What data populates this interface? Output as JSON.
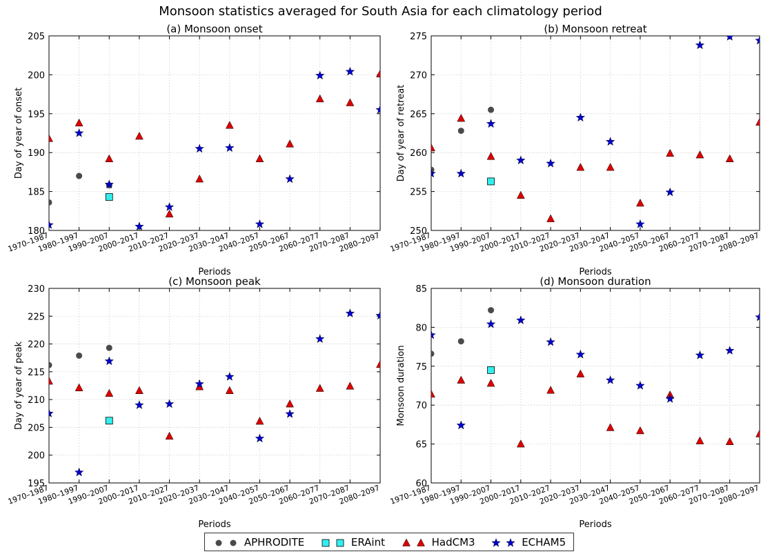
{
  "figure_title": "Monsoon statistics averaged for South Asia for each climatology period",
  "colors": {
    "APHRODITE": "#4a4a4a",
    "ERAint": "#33eeee",
    "HadCM3": "#dd0000",
    "ECHAM5": "#0000cc"
  },
  "legend": [
    {
      "name": "APHRODITE",
      "marker": "circle"
    },
    {
      "name": "ERAint",
      "marker": "square"
    },
    {
      "name": "HadCM3",
      "marker": "triangle"
    },
    {
      "name": "ECHAM5",
      "marker": "star"
    }
  ],
  "chart_data": [
    {
      "type": "scatter",
      "title": "(a) Monsoon onset",
      "xlabel": "Periods",
      "ylabel": "Day of year of onset",
      "ylim": [
        180,
        205
      ],
      "yticks": [
        180,
        185,
        190,
        195,
        200,
        205
      ],
      "grid": true,
      "categories": [
        "1970-1987",
        "1980-1997",
        "1990-2007",
        "2000-2017",
        "2010-2027",
        "2020-2037",
        "2030-2047",
        "2040-2057",
        "2050-2067",
        "2060-2077",
        "2070-2087",
        "2080-2097"
      ],
      "series": [
        {
          "name": "APHRODITE",
          "values": [
            183.6,
            187.0,
            185.8,
            null,
            null,
            null,
            null,
            null,
            null,
            null,
            null,
            null
          ]
        },
        {
          "name": "ERAint",
          "values": [
            null,
            null,
            184.3,
            null,
            null,
            null,
            null,
            null,
            null,
            null,
            null,
            null
          ]
        },
        {
          "name": "HadCM3",
          "values": [
            191.8,
            193.8,
            189.2,
            192.1,
            182.1,
            186.6,
            193.5,
            189.2,
            191.1,
            196.9,
            196.4,
            200.1
          ]
        },
        {
          "name": "ECHAM5",
          "values": [
            180.7,
            192.5,
            185.9,
            180.5,
            183.0,
            190.5,
            190.6,
            180.8,
            186.6,
            199.9,
            200.4,
            195.5
          ]
        }
      ]
    },
    {
      "type": "scatter",
      "title": "(b) Monsoon retreat",
      "xlabel": "Periods",
      "ylabel": "Day of year of retreat",
      "ylim": [
        250,
        275
      ],
      "yticks": [
        250,
        255,
        260,
        265,
        270,
        275
      ],
      "grid": true,
      "categories": [
        "1970-1987",
        "1980-1997",
        "1990-2007",
        "2000-2017",
        "2010-2027",
        "2020-2037",
        "2030-2047",
        "2040-2057",
        "2050-2067",
        "2060-2077",
        "2070-2087",
        "2080-2097"
      ],
      "series": [
        {
          "name": "APHRODITE",
          "values": [
            257.8,
            262.8,
            265.5,
            null,
            null,
            null,
            null,
            null,
            null,
            null,
            null,
            null
          ]
        },
        {
          "name": "ERAint",
          "values": [
            null,
            null,
            256.3,
            null,
            null,
            null,
            null,
            null,
            null,
            null,
            null,
            null
          ]
        },
        {
          "name": "HadCM3",
          "values": [
            260.6,
            264.4,
            259.5,
            254.5,
            251.5,
            258.1,
            258.1,
            253.5,
            259.9,
            259.7,
            259.2,
            263.9
          ]
        },
        {
          "name": "ECHAM5",
          "values": [
            257.3,
            257.3,
            263.7,
            259.0,
            258.6,
            264.5,
            261.4,
            250.8,
            254.9,
            273.8,
            274.9,
            274.4
          ]
        }
      ]
    },
    {
      "type": "scatter",
      "title": "(c) Monsoon peak",
      "xlabel": "Periods",
      "ylabel": "Day of year of peak",
      "ylim": [
        195,
        230
      ],
      "yticks": [
        195,
        200,
        205,
        210,
        215,
        220,
        225,
        230
      ],
      "grid": true,
      "categories": [
        "1970-1987",
        "1980-1997",
        "1990-2007",
        "2000-2017",
        "2010-2027",
        "2020-2037",
        "2030-2047",
        "2040-2057",
        "2050-2067",
        "2060-2077",
        "2070-2087",
        "2080-2097"
      ],
      "series": [
        {
          "name": "APHRODITE",
          "values": [
            216.2,
            217.9,
            219.3,
            null,
            null,
            null,
            null,
            null,
            null,
            null,
            null,
            null
          ]
        },
        {
          "name": "ERAint",
          "values": [
            null,
            null,
            206.2,
            null,
            null,
            null,
            null,
            null,
            null,
            null,
            null,
            null
          ]
        },
        {
          "name": "HadCM3",
          "values": [
            213.3,
            212.1,
            211.1,
            211.6,
            203.4,
            212.3,
            211.6,
            206.1,
            209.2,
            212.0,
            212.4,
            216.3
          ]
        },
        {
          "name": "ECHAM5",
          "values": [
            207.5,
            196.9,
            216.9,
            209.0,
            209.2,
            212.8,
            214.1,
            203.0,
            207.4,
            220.9,
            225.5,
            225.1
          ]
        }
      ]
    },
    {
      "type": "scatter",
      "title": "(d) Monsoon duration",
      "xlabel": "Periods",
      "ylabel": "Monsoon duration",
      "ylim": [
        60,
        85
      ],
      "yticks": [
        60,
        65,
        70,
        75,
        80,
        85
      ],
      "grid": true,
      "categories": [
        "1970-1987",
        "1980-1997",
        "1990-2007",
        "2000-2017",
        "2010-2027",
        "2020-2037",
        "2030-2047",
        "2040-2057",
        "2050-2067",
        "2060-2077",
        "2070-2087",
        "2080-2097"
      ],
      "series": [
        {
          "name": "APHRODITE",
          "values": [
            76.6,
            78.2,
            82.2,
            null,
            null,
            null,
            null,
            null,
            null,
            null,
            null,
            null
          ]
        },
        {
          "name": "ERAint",
          "values": [
            null,
            null,
            74.5,
            null,
            null,
            null,
            null,
            null,
            null,
            null,
            null,
            null
          ]
        },
        {
          "name": "HadCM3",
          "values": [
            71.4,
            73.2,
            72.8,
            65.0,
            71.9,
            74.0,
            67.1,
            66.7,
            71.3,
            65.4,
            65.3,
            66.3
          ]
        },
        {
          "name": "ECHAM5",
          "values": [
            79.0,
            67.4,
            80.4,
            80.9,
            78.1,
            76.5,
            73.2,
            72.5,
            70.8,
            76.4,
            77.0,
            81.3
          ]
        }
      ]
    }
  ]
}
